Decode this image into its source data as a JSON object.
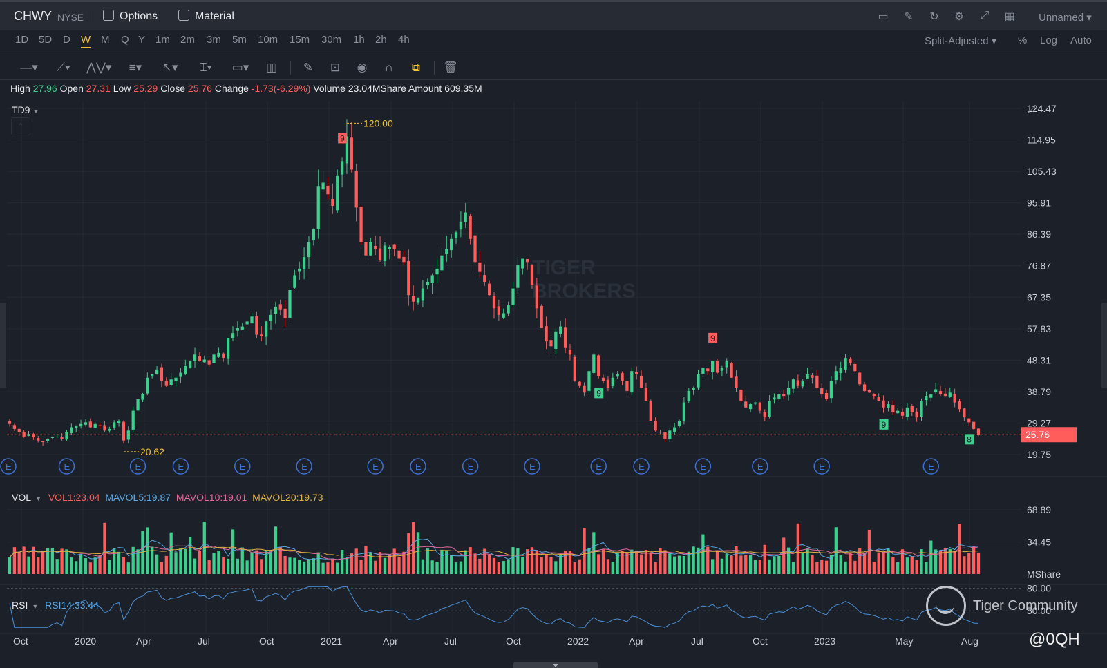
{
  "header": {
    "ticker": "CHWY",
    "exchange": "NYSE",
    "options_label": "Options",
    "material_label": "Material",
    "layout_name": "Unnamed"
  },
  "periods": [
    "1D",
    "5D",
    "D",
    "W",
    "M",
    "Q",
    "Y",
    "1m",
    "2m",
    "3m",
    "5m",
    "10m",
    "15m",
    "30m",
    "1h",
    "2h",
    "4h"
  ],
  "active_period": "W",
  "chart_options": {
    "adjust": "Split-Adjusted",
    "percent": "%",
    "log": "Log",
    "auto": "Auto"
  },
  "tools": [
    "line-tool-icon",
    "trend-tool-icon",
    "pattern-tool-icon",
    "fib-tool-icon",
    "cursor-tool-icon",
    "text-tool-icon",
    "annotation-tool-icon",
    "bars-tool-icon",
    "pencil-icon",
    "lock-icon",
    "eye-icon",
    "magnet-icon",
    "link-icon",
    "trash-icon"
  ],
  "ohlc": {
    "high_label": "High",
    "high": "27.96",
    "open_label": "Open",
    "open": "27.31",
    "low_label": "Low",
    "low": "25.29",
    "close_label": "Close",
    "close": "25.76",
    "change_label": "Change",
    "change": "-1.73(-6.29%)",
    "volume_label": "Volume",
    "volume": "23.04MShare",
    "amount_label": "Amount",
    "amount": "609.35M"
  },
  "indicator": {
    "name": "TD9"
  },
  "volume_legend": {
    "name": "VOL",
    "vol1": "VOL1:23.04",
    "mavol5": "MAVOL5:19.87",
    "mavol10": "MAVOL10:19.01",
    "mavol20": "MAVOL20:19.73"
  },
  "rsi_legend": {
    "name": "RSI",
    "rsi14": "RSI14:33.44"
  },
  "watermark": {
    "community": "Tiger Community",
    "handle": "@0QH"
  },
  "colors": {
    "up": "#3ccf8e",
    "down": "#ff5c5c",
    "accent": "#f2c230",
    "rsi": "#4a90d9",
    "mavol5": "#5aa9e6",
    "mavol10": "#e06a9a",
    "mavol20": "#e0b040"
  },
  "chart_data": [
    {
      "type": "candlestick",
      "title": "CHWY NYSE",
      "x_ticks": [
        "Oct",
        "2020",
        "Apr",
        "Jul",
        "Oct",
        "2021",
        "Apr",
        "Jul",
        "Oct",
        "2022",
        "Apr",
        "Jul",
        "Oct",
        "2023",
        "May",
        "Aug"
      ],
      "y_ticks": [
        "124.47",
        "114.95",
        "105.43",
        "95.91",
        "86.39",
        "76.87",
        "67.35",
        "57.83",
        "48.31",
        "38.79",
        "29.27",
        "19.75"
      ],
      "ylim": [
        19.75,
        124.47
      ],
      "last_price": "25.76",
      "annotations": [
        {
          "text": "120.00",
          "price": 120.0,
          "week_index": 71
        },
        {
          "text": "20.62",
          "price": 20.62,
          "week_index": 24
        }
      ],
      "earnings_marker": "E",
      "earnings_week_indices": [
        0,
        12,
        27,
        36,
        49,
        62,
        77,
        86,
        97,
        110,
        124,
        133,
        146,
        158,
        171,
        194
      ],
      "close": [
        29.0,
        27.5,
        26.5,
        25.2,
        26.0,
        25.0,
        24.0,
        23.5,
        24.5,
        25.0,
        25.2,
        24.5,
        26.5,
        28.0,
        28.5,
        29.0,
        29.5,
        28.0,
        29.0,
        28.5,
        27.0,
        27.5,
        29.5,
        30.0,
        24.0,
        27.0,
        33.0,
        36.5,
        38.0,
        43.0,
        44.0,
        45.5,
        42.0,
        40.5,
        42.5,
        43.0,
        44.5,
        46.5,
        48.0,
        50.0,
        48.0,
        48.5,
        47.0,
        50.0,
        50.5,
        49.0,
        55.0,
        56.5,
        58.0,
        58.5,
        60.0,
        61.5,
        56.0,
        55.5,
        60.0,
        62.0,
        64.5,
        63.5,
        61.0,
        69.5,
        74.0,
        76.0,
        79.5,
        84.0,
        88.0,
        101.0,
        102.0,
        98.5,
        95.0,
        104.0,
        108.5,
        116.0,
        106.0,
        94.5,
        84.0,
        80.0,
        84.0,
        82.0,
        78.5,
        83.0,
        82.5,
        82.0,
        79.0,
        78.0,
        68.0,
        66.0,
        67.0,
        70.0,
        72.0,
        74.0,
        76.0,
        80.0,
        82.0,
        85.0,
        87.0,
        90.0,
        93.0,
        85.0,
        78.0,
        75.0,
        72.0,
        68.0,
        64.0,
        62.0,
        62.5,
        65.0,
        70.0,
        77.0,
        79.0,
        78.0,
        71.0,
        64.0,
        58.0,
        54.0,
        52.5,
        57.0,
        58.5,
        52.0,
        50.0,
        42.0,
        40.5,
        38.5,
        45.0,
        50.0,
        43.5,
        42.0,
        40.0,
        43.0,
        44.0,
        42.0,
        39.0,
        45.0,
        44.0,
        40.0,
        36.0,
        30.0,
        27.0,
        26.5,
        24.5,
        27.0,
        28.0,
        30.0,
        35.5,
        39.0,
        40.0,
        44.0,
        46.0,
        45.0,
        48.0,
        44.5,
        46.0,
        48.0,
        43.0,
        40.0,
        36.0,
        34.0,
        35.0,
        35.5,
        33.0,
        31.0,
        36.0,
        37.0,
        38.0,
        37.5,
        40.0,
        42.5,
        40.5,
        42.0,
        44.0,
        43.0,
        40.0,
        38.0,
        36.5,
        42.0,
        45.0,
        46.0,
        49.0,
        47.5,
        45.0,
        41.0,
        39.0,
        38.5,
        37.5,
        36.0,
        34.0,
        35.0,
        32.5,
        33.0,
        31.5,
        34.0,
        32.5,
        31.0,
        36.0,
        37.5,
        38.0,
        39.5,
        38.0,
        37.5,
        38.5,
        35.5,
        33.5,
        31.0,
        29.5,
        27.5,
        25.76
      ],
      "td9_labels": [
        {
          "text": "9",
          "week_index": 70,
          "boxed": true,
          "color": "#ff5c5c"
        },
        {
          "text": "9",
          "week_index": 124,
          "boxed": true,
          "color": "#3ccf8e"
        },
        {
          "text": "9",
          "week_index": 148,
          "boxed": true,
          "color": "#ff5c5c"
        },
        {
          "text": "9",
          "week_index": 184,
          "boxed": true,
          "color": "#3ccf8e"
        },
        {
          "text": "8",
          "week_index": 202,
          "boxed": true,
          "color": "#3ccf8e"
        }
      ]
    },
    {
      "type": "bar",
      "title": "VOL",
      "y_ticks": [
        "68.89",
        "34.45"
      ],
      "unit": "MShare",
      "ylim": [
        0,
        80
      ]
    },
    {
      "type": "line",
      "title": "RSI",
      "y_ticks": [
        "80.00",
        "50.00"
      ],
      "ylim": [
        20,
        85
      ],
      "x_ticks": [
        "Oct",
        "2020",
        "Apr",
        "Jul",
        "Oct",
        "2021",
        "Apr",
        "Jul",
        "Oct",
        "2022",
        "Apr",
        "Jul",
        "Oct",
        "2023",
        "May",
        "Aug"
      ]
    }
  ]
}
